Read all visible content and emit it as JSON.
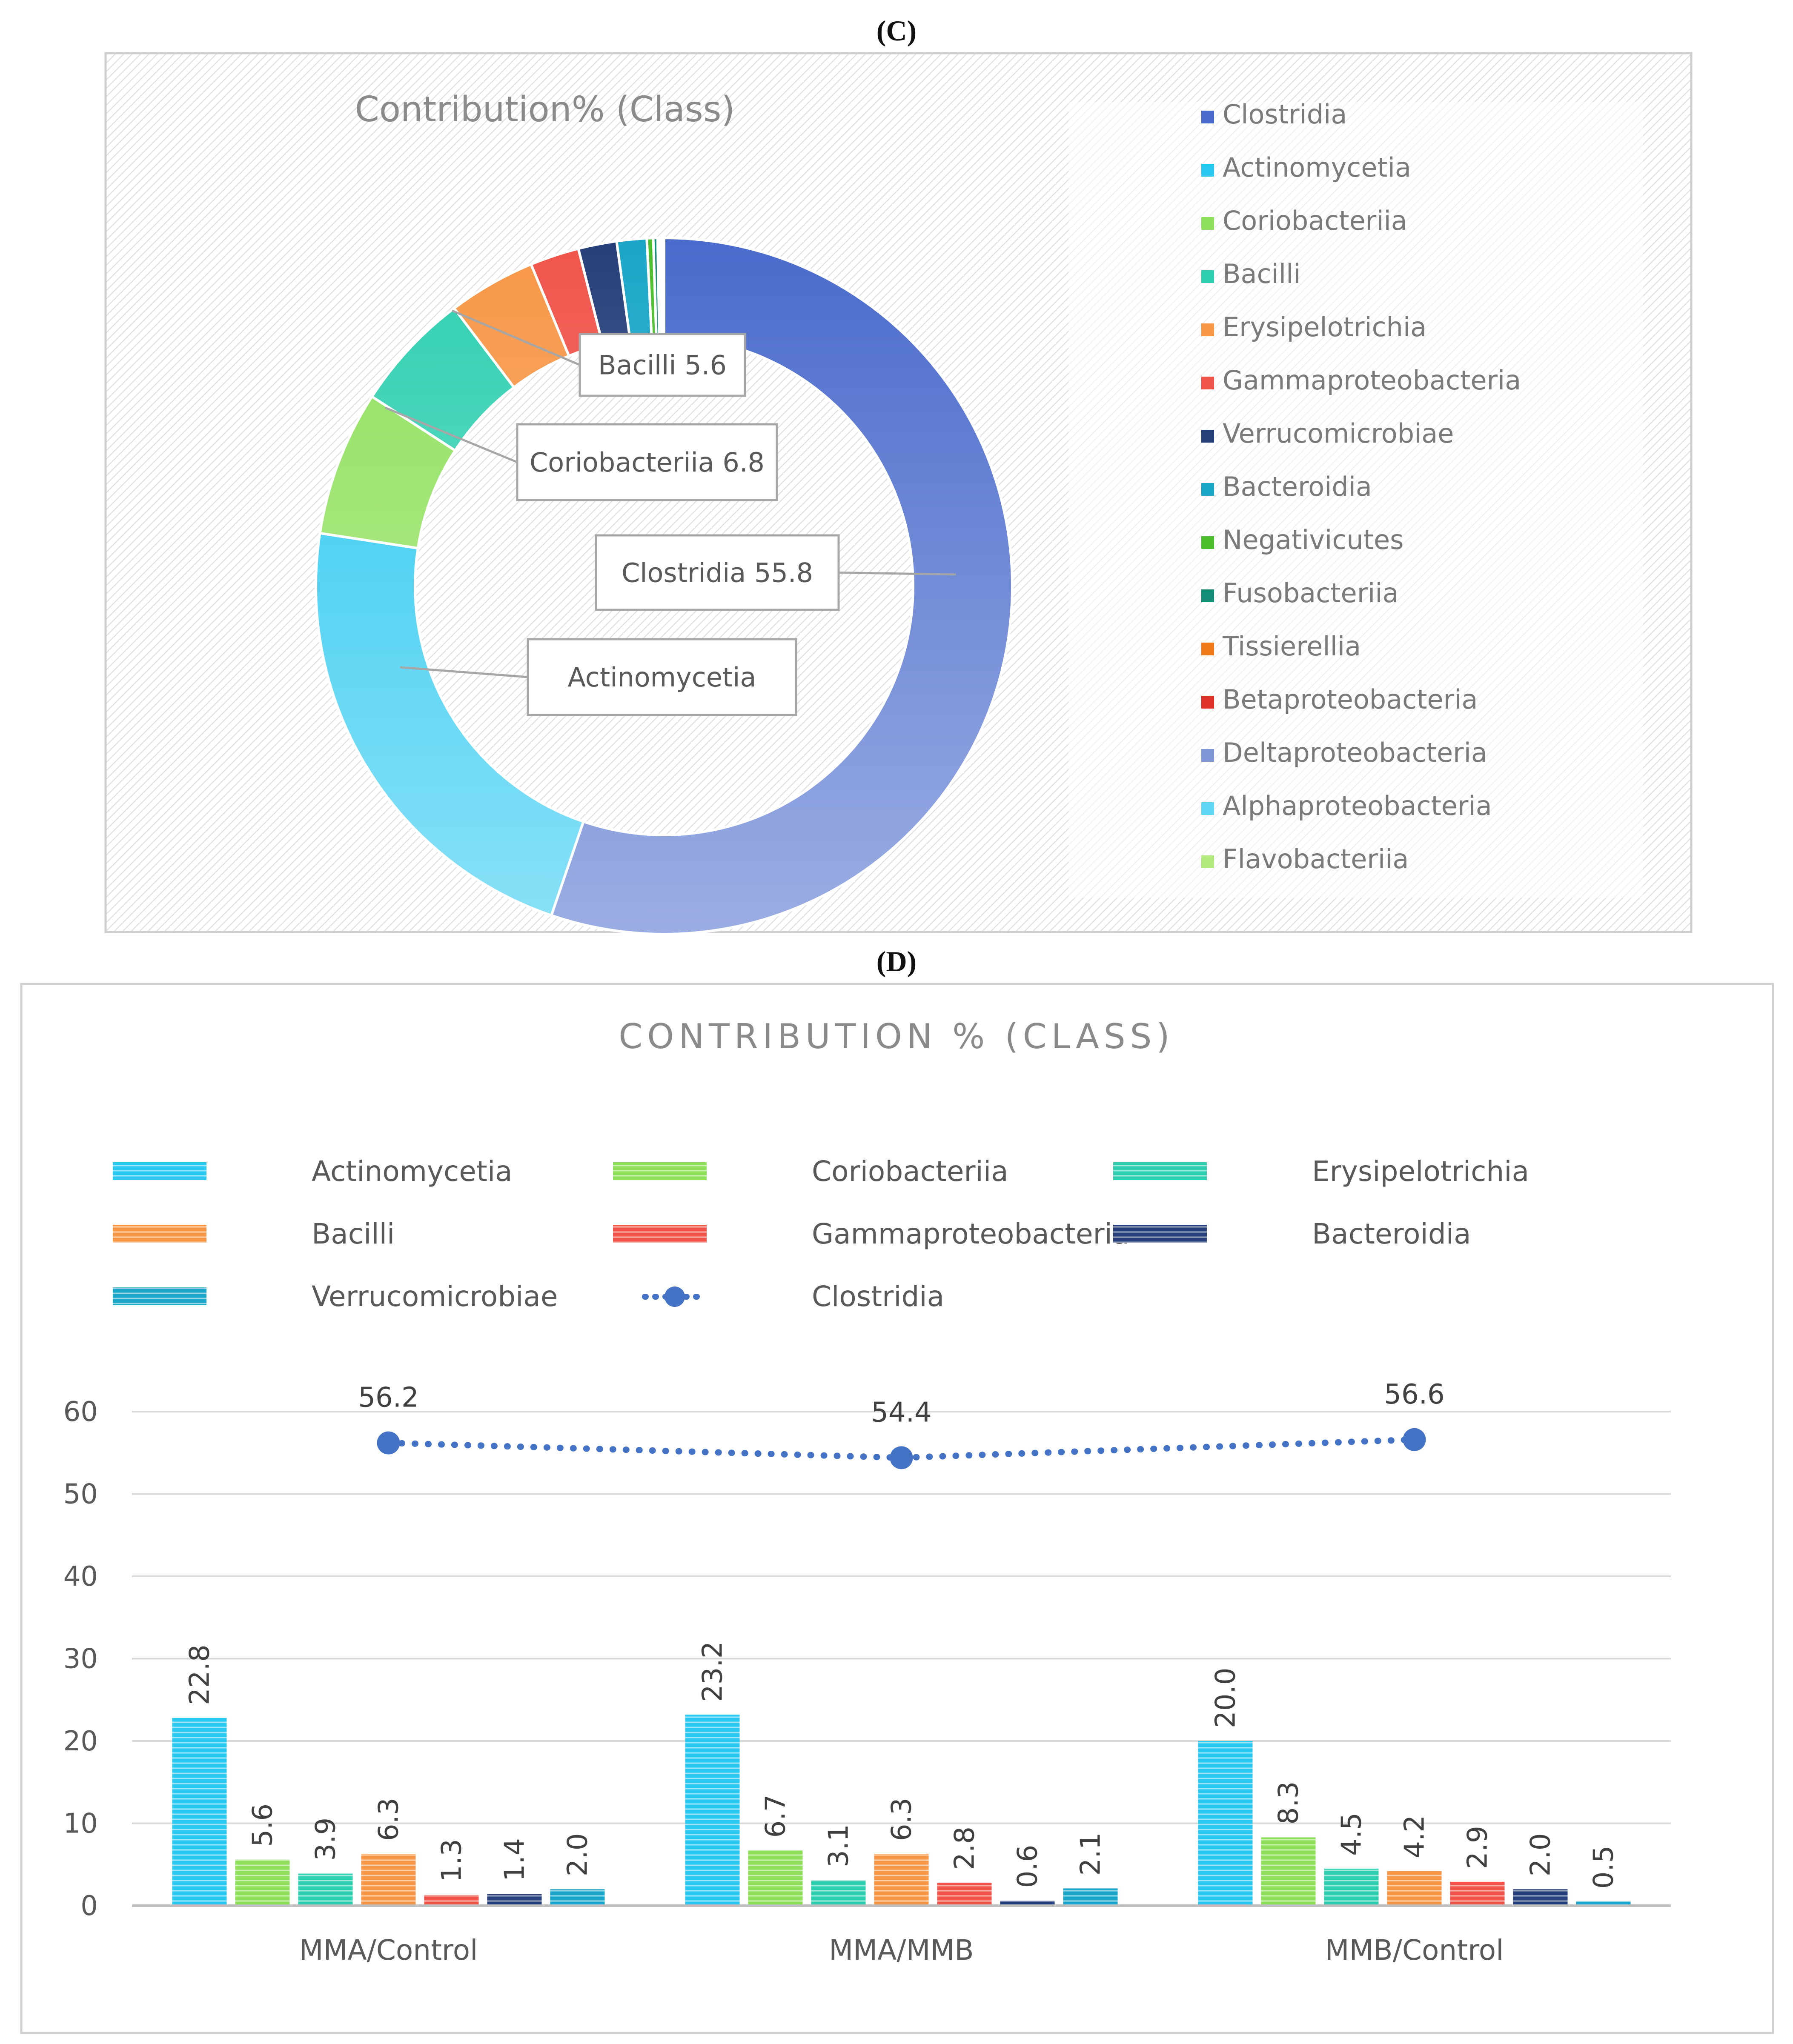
{
  "figure": {
    "panel_c_label": "(C)",
    "panel_d_label": "(D)"
  },
  "colors": {
    "Clostridia": "#4a6bcc",
    "Actinomycetia": "#29c8f0",
    "Coriobacteriia": "#8ee05a",
    "Bacilli": "#2ecfb0",
    "Erysipelotrichia": "#2ecfb0",
    "Gammaproteobacteria": "#f0544a",
    "Verrucomicrobiae": "#1aa6c8",
    "Bacteroidia": "#263f7a",
    "Negativicutes": "#4cbf2c",
    "Fusobacteriia": "#138f78",
    "Tissierellia": "#f07a18",
    "Betaproteobacteria": "#e0322a",
    "Deltaproteobacteria": "#7f95d6",
    "Alphaproteobacteria": "#5fd6f4",
    "Flavobacteriia": "#b2e87e",
    "BacilliOrange": "#f79646"
  },
  "chart_data": [
    {
      "type": "pie",
      "style": "donut",
      "title": "Contribution% (Class)",
      "labels": [
        "Clostridia",
        "Actinomycetia",
        "Coriobacteriia",
        "Bacilli",
        "Erysipelotrichia",
        "Gammaproteobacteria",
        "Verrucomicrobiae",
        "Bacteroidia",
        "Negativicutes",
        "Fusobacteriia",
        "Tissierellia",
        "Betaproteobacteria",
        "Deltaproteobacteria",
        "Alphaproteobacteria",
        "Flavobacteriia"
      ],
      "values": [
        55.8,
        22.4,
        6.8,
        5.6,
        4.1,
        2.3,
        1.8,
        1.4,
        0.3,
        0.2,
        0.1,
        0.1,
        0.05,
        0.03,
        0.02
      ],
      "legend_colors": [
        "#4a6bcc",
        "#29c8f0",
        "#8ee05a",
        "#2ecfb0",
        "#f79646",
        "#f0544a",
        "#263f7a",
        "#1aa6c8",
        "#4cbf2c",
        "#138f78",
        "#f07a18",
        "#e0322a",
        "#7f95d6",
        "#5fd6f4",
        "#b2e87e"
      ],
      "slice_colors": [
        "#4a6bcc",
        "#29c8f0",
        "#8ee05a",
        "#2ecfb0",
        "#f79646",
        "#f0544a",
        "#263f7a",
        "#1aa6c8",
        "#4cbf2c",
        "#138f78",
        "#f07a18",
        "#e0322a",
        "#7f95d6",
        "#5fd6f4",
        "#b2e87e"
      ],
      "callouts": [
        "Bacilli 5.6",
        "Coriobacteriia 6.8",
        "Clostridia 55.8",
        "Actinomycetia"
      ],
      "legend_position": "right"
    },
    {
      "type": "bar",
      "title": "CONTRIBUTION % (CLASS)",
      "categories": [
        "MMA/Control",
        "MMA/MMB",
        "MMB/Control"
      ],
      "series": [
        {
          "name": "Actinomycetia",
          "values": [
            22.8,
            23.2,
            20.0
          ],
          "labels": [
            "22.8",
            "23.2",
            "20.0"
          ],
          "color": "#29c8f0"
        },
        {
          "name": "Coriobacteriia",
          "values": [
            5.6,
            6.7,
            8.3
          ],
          "labels": [
            "5.6",
            "6.7",
            "8.3"
          ],
          "color": "#8ee05a"
        },
        {
          "name": "Erysipelotrichia",
          "values": [
            3.9,
            3.1,
            4.5
          ],
          "labels": [
            "3.9",
            "3.1",
            "4.5"
          ],
          "color": "#2ecfb0"
        },
        {
          "name": "Bacilli",
          "values": [
            6.3,
            6.3,
            4.2
          ],
          "labels": [
            "6.3",
            "6.3",
            "4.2"
          ],
          "color": "#f79646"
        },
        {
          "name": "Gammaproteobacteria",
          "values": [
            1.3,
            2.8,
            2.9
          ],
          "labels": [
            "1.3",
            "2.8",
            "2.9"
          ],
          "color": "#f0544a"
        },
        {
          "name": "Bacteroidia",
          "values": [
            1.4,
            0.6,
            2.0
          ],
          "labels": [
            "1.4",
            "0.6",
            "2.0"
          ],
          "color": "#263f7a"
        },
        {
          "name": "Verrucomicrobiae",
          "values": [
            2.0,
            2.1,
            0.5
          ],
          "labels": [
            "2.0",
            "2.1",
            "0.5"
          ],
          "color": "#1aa6c8"
        }
      ],
      "line_series": {
        "name": "Clostridia",
        "values": [
          56.2,
          54.4,
          56.6
        ],
        "labels": [
          "56.2",
          "54.4",
          "56.6"
        ],
        "color": "#4472c4",
        "style": "dotted"
      },
      "legend": [
        "Actinomycetia",
        "Coriobacteriia",
        "Erysipelotrichia",
        "Bacilli",
        "Gammaproteobacteria",
        "Bacteroidia",
        "Verrucomicrobiae",
        "Clostridia"
      ],
      "ylim": [
        0,
        60
      ],
      "yticks": [
        0,
        10,
        20,
        30,
        40,
        50,
        60
      ],
      "ytick_labels": [
        "0",
        "10",
        "20",
        "30",
        "40",
        "50",
        "60"
      ],
      "grid": true,
      "legend_position": "top"
    }
  ]
}
